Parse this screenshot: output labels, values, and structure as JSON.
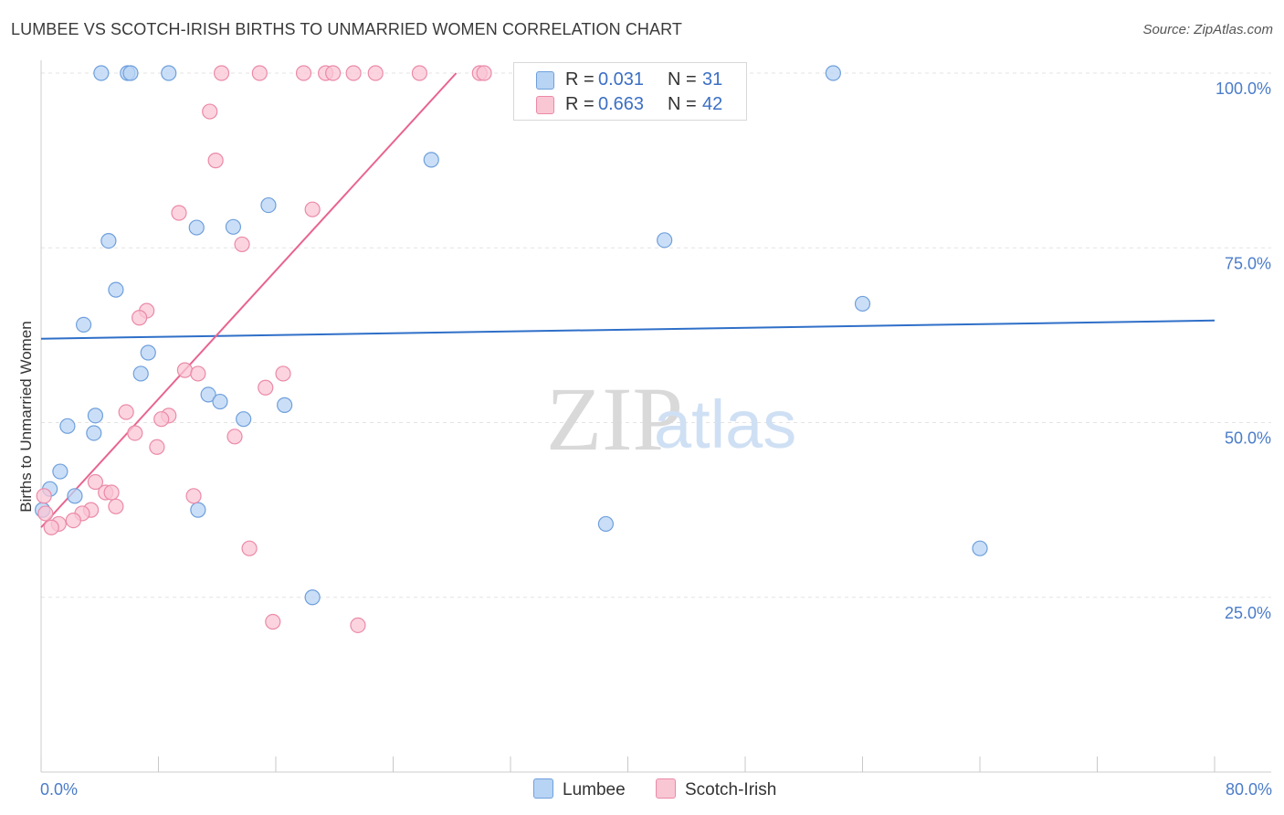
{
  "header": {
    "title": "LUMBEE VS SCOTCH-IRISH BIRTHS TO UNMARRIED WOMEN CORRELATION CHART",
    "source": "Source: ZipAtlas.com"
  },
  "watermark": {
    "zip": "ZIP",
    "atlas": "atlas"
  },
  "legend": {
    "rows": [
      {
        "r_label": "R =",
        "r_value": "0.031",
        "n_label": "N =",
        "n_value": "31"
      },
      {
        "r_label": "R =",
        "r_value": "0.663",
        "n_label": "N =",
        "n_value": "42"
      }
    ]
  },
  "bottom_legend": {
    "series1": "Lumbee",
    "series2": "Scotch-Irish"
  },
  "colors": {
    "lumbee_fill": "#b8d4f4",
    "lumbee_stroke": "#6f9fdc",
    "lumbee_line": "#2f6fc8",
    "scotch_fill": "#f9c6d4",
    "scotch_stroke": "#eb8aa8",
    "scotch_line": "#e8648f",
    "tick": "#4a7cc9",
    "grid": "#e3e3e3"
  },
  "chart_data": {
    "type": "scatter",
    "title": "LUMBEE VS SCOTCH-IRISH BIRTHS TO UNMARRIED WOMEN CORRELATION CHART",
    "xlabel": "",
    "ylabel": "Births to Unmarried Women",
    "xlim": [
      0,
      80
    ],
    "ylim": [
      0,
      100
    ],
    "x_tick_labels": [
      "0.0%",
      "80.0%"
    ],
    "y_ticks": [
      25,
      50,
      75,
      100
    ],
    "y_tick_labels": [
      "25.0%",
      "50.0%",
      "75.0%",
      "100.0%"
    ],
    "grid": true,
    "legend_position": "top-center",
    "series": [
      {
        "name": "Lumbee",
        "r": 0.031,
        "n": 31,
        "trend": {
          "x": [
            0,
            80
          ],
          "y": [
            62.0,
            64.6
          ]
        },
        "points": [
          {
            "x": 4.1,
            "y": 100
          },
          {
            "x": 5.9,
            "y": 100
          },
          {
            "x": 6.1,
            "y": 100
          },
          {
            "x": 8.7,
            "y": 100
          },
          {
            "x": 54.0,
            "y": 100
          },
          {
            "x": 26.6,
            "y": 87.6
          },
          {
            "x": 15.5,
            "y": 81.1
          },
          {
            "x": 13.1,
            "y": 78.0
          },
          {
            "x": 10.6,
            "y": 77.9
          },
          {
            "x": 4.6,
            "y": 76.0
          },
          {
            "x": 42.5,
            "y": 76.1
          },
          {
            "x": 5.1,
            "y": 69.0
          },
          {
            "x": 56.0,
            "y": 67.0
          },
          {
            "x": 2.9,
            "y": 64.0
          },
          {
            "x": 7.3,
            "y": 60.0
          },
          {
            "x": 6.8,
            "y": 57.0
          },
          {
            "x": 11.4,
            "y": 54.0
          },
          {
            "x": 12.2,
            "y": 53.0
          },
          {
            "x": 16.6,
            "y": 52.5
          },
          {
            "x": 3.7,
            "y": 51.0
          },
          {
            "x": 13.8,
            "y": 50.5
          },
          {
            "x": 1.8,
            "y": 49.5
          },
          {
            "x": 3.6,
            "y": 48.5
          },
          {
            "x": 1.3,
            "y": 43.0
          },
          {
            "x": 0.6,
            "y": 40.5
          },
          {
            "x": 2.3,
            "y": 39.5
          },
          {
            "x": 10.7,
            "y": 37.5
          },
          {
            "x": 0.1,
            "y": 37.5
          },
          {
            "x": 38.5,
            "y": 35.5
          },
          {
            "x": 64.0,
            "y": 32.0
          },
          {
            "x": 18.5,
            "y": 25.0
          }
        ]
      },
      {
        "name": "Scotch-Irish",
        "r": 0.663,
        "n": 42,
        "trend": {
          "x": [
            0,
            28.3
          ],
          "y": [
            35.0,
            100
          ]
        },
        "points": [
          {
            "x": 12.3,
            "y": 100
          },
          {
            "x": 14.9,
            "y": 100
          },
          {
            "x": 17.9,
            "y": 100
          },
          {
            "x": 19.4,
            "y": 100
          },
          {
            "x": 19.9,
            "y": 100
          },
          {
            "x": 21.3,
            "y": 100
          },
          {
            "x": 22.8,
            "y": 100
          },
          {
            "x": 25.8,
            "y": 100
          },
          {
            "x": 29.9,
            "y": 100
          },
          {
            "x": 30.2,
            "y": 100
          },
          {
            "x": 11.5,
            "y": 94.5
          },
          {
            "x": 11.9,
            "y": 87.5
          },
          {
            "x": 18.5,
            "y": 80.5
          },
          {
            "x": 9.4,
            "y": 80.0
          },
          {
            "x": 13.7,
            "y": 75.5
          },
          {
            "x": 7.2,
            "y": 66.0
          },
          {
            "x": 6.7,
            "y": 65.0
          },
          {
            "x": 9.8,
            "y": 57.5
          },
          {
            "x": 10.7,
            "y": 57.0
          },
          {
            "x": 16.5,
            "y": 57.0
          },
          {
            "x": 15.3,
            "y": 55.0
          },
          {
            "x": 5.8,
            "y": 51.5
          },
          {
            "x": 8.7,
            "y": 51.0
          },
          {
            "x": 8.2,
            "y": 50.5
          },
          {
            "x": 6.4,
            "y": 48.5
          },
          {
            "x": 13.2,
            "y": 48.0
          },
          {
            "x": 7.9,
            "y": 46.5
          },
          {
            "x": 3.7,
            "y": 41.5
          },
          {
            "x": 4.4,
            "y": 40.0
          },
          {
            "x": 4.8,
            "y": 40.0
          },
          {
            "x": 10.4,
            "y": 39.5
          },
          {
            "x": 5.1,
            "y": 38.0
          },
          {
            "x": 3.4,
            "y": 37.5
          },
          {
            "x": 2.8,
            "y": 37.0
          },
          {
            "x": 0.3,
            "y": 37.0
          },
          {
            "x": 2.2,
            "y": 36.0
          },
          {
            "x": 1.2,
            "y": 35.5
          },
          {
            "x": 0.7,
            "y": 35.0
          },
          {
            "x": 14.2,
            "y": 32.0
          },
          {
            "x": 15.8,
            "y": 21.5
          },
          {
            "x": 21.6,
            "y": 21.0
          },
          {
            "x": 0.2,
            "y": 39.5
          }
        ]
      }
    ]
  }
}
